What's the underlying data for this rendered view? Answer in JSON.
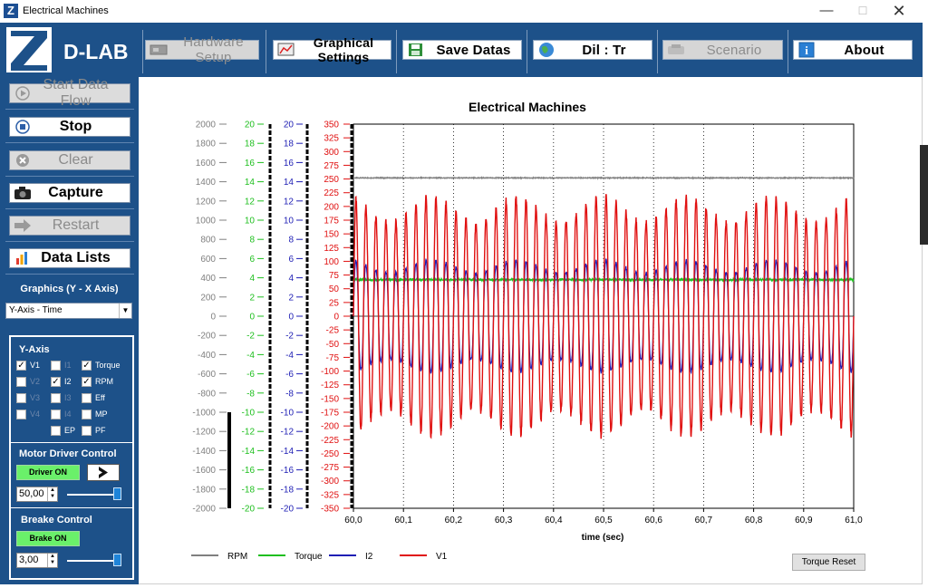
{
  "window": {
    "title": "Electrical Machines",
    "minimize": "—",
    "maximize": "☐",
    "close": "✕"
  },
  "logo": {
    "text": "D-LAB"
  },
  "toolbar": [
    {
      "label": "Hardware Setup",
      "icon": "hardware-icon",
      "disabled": true
    },
    {
      "label": "Graphical Settings",
      "icon": "graph-settings-icon",
      "disabled": false
    },
    {
      "label": "Save  Datas",
      "icon": "save-icon",
      "disabled": false
    },
    {
      "label": "Dil : Tr",
      "icon": "globe-icon",
      "disabled": false
    },
    {
      "label": "Scenario",
      "icon": "scenario-icon",
      "disabled": true
    },
    {
      "label": "About",
      "icon": "info-icon",
      "disabled": false
    }
  ],
  "left": {
    "start": "Start Data Flow",
    "stop": "Stop",
    "clear": "Clear",
    "capture": "Capture",
    "restart": "Restart",
    "datalists": "Data Lists",
    "graphics_label": "Graphics (Y - X Axis)",
    "axis_select": "Y-Axis - Time",
    "yaxis_title": "Y-Axis",
    "checkboxes": [
      {
        "label": "V1",
        "checked": true,
        "enabled": true
      },
      {
        "label": "I1",
        "checked": false,
        "enabled": false
      },
      {
        "label": "Torque",
        "checked": true,
        "enabled": true
      },
      {
        "label": "V2",
        "checked": false,
        "enabled": false
      },
      {
        "label": "I2",
        "checked": true,
        "enabled": true
      },
      {
        "label": "RPM",
        "checked": true,
        "enabled": true
      },
      {
        "label": "V3",
        "checked": false,
        "enabled": false
      },
      {
        "label": "I3",
        "checked": false,
        "enabled": false
      },
      {
        "label": "Eff",
        "checked": false,
        "enabled": true
      },
      {
        "label": "V4",
        "checked": false,
        "enabled": false
      },
      {
        "label": "I4",
        "checked": false,
        "enabled": false
      },
      {
        "label": "MP",
        "checked": false,
        "enabled": true
      },
      {
        "label": "EP",
        "checked": false,
        "enabled": true
      },
      {
        "label": "PF",
        "checked": false,
        "enabled": true
      }
    ],
    "motor_title": "Motor Driver Control",
    "driver_btn": "Driver ON",
    "driver_value": "50,00",
    "driver_level": 0.97,
    "brake_title": "Breake Control",
    "brake_btn": "Brake ON",
    "brake_value": "3,00",
    "brake_level": 0.97
  },
  "torque_reset": "Torque Reset",
  "colors": {
    "rpm": "#808080",
    "torque": "#1fbf1f",
    "i2": "#1e1eb4",
    "v1": "#e01010",
    "blue_panel": "#1d5189"
  },
  "chart_data": {
    "type": "line",
    "title": "Electrical Machines",
    "xlabel": "time (sec)",
    "xlim": [
      60.0,
      61.0
    ],
    "x_ticks": [
      "60,0",
      "60,1",
      "60,2",
      "60,3",
      "60,4",
      "60,5",
      "60,6",
      "60,7",
      "60,8",
      "60,9",
      "61,0"
    ],
    "axes": [
      {
        "name": "RPM",
        "color": "#808080",
        "ylim": [
          -2000,
          2000
        ],
        "ticks": [
          "2000",
          "1800",
          "1600",
          "1400",
          "1200",
          "1000",
          "800",
          "600",
          "400",
          "200",
          "0",
          "-200",
          "-400",
          "-600",
          "-800",
          "-1000",
          "-1200",
          "-1400",
          "-1600",
          "-1800",
          "-2000"
        ]
      },
      {
        "name": "Torque",
        "color": "#1fbf1f",
        "ylim": [
          -20,
          20
        ],
        "ticks": [
          "20",
          "18",
          "16",
          "14",
          "12",
          "10",
          "8",
          "6",
          "4",
          "2",
          "0",
          "-2",
          "-4",
          "-6",
          "-8",
          "-10",
          "-12",
          "-14",
          "-16",
          "-18",
          "-20"
        ]
      },
      {
        "name": "I2",
        "color": "#1e1eb4",
        "ylim": [
          -20,
          20
        ],
        "ticks": [
          "20",
          "18",
          "16",
          "14",
          "12",
          "10",
          "8",
          "6",
          "4",
          "2",
          "0",
          "-2",
          "-4",
          "-6",
          "-8",
          "-10",
          "-12",
          "-14",
          "-16",
          "-18",
          "-20"
        ]
      },
      {
        "name": "V1",
        "color": "#e01010",
        "ylim": [
          -350,
          350
        ],
        "ticks": [
          "350",
          "325",
          "300",
          "275",
          "250",
          "225",
          "200",
          "175",
          "150",
          "125",
          "100",
          "75",
          "50",
          "25",
          "0",
          "-25",
          "-50",
          "-75",
          "-100",
          "-125",
          "-150",
          "-175",
          "-200",
          "-225",
          "-250",
          "-275",
          "-300",
          "-325",
          "-350"
        ]
      }
    ],
    "legend": [
      "RPM",
      "Torque",
      "I2",
      "V1"
    ],
    "series": [
      {
        "name": "RPM",
        "axis": "RPM",
        "approx_value": 1440
      },
      {
        "name": "Torque",
        "axis": "Torque",
        "approx_value": 3.8
      },
      {
        "name": "I2",
        "axis": "I2",
        "amplitude": 5.5,
        "frequency_hz": 50
      },
      {
        "name": "V1",
        "axis": "V1",
        "amplitude": 195,
        "frequency_hz": 50
      }
    ],
    "grid": true,
    "legend_position": "bottom-left"
  }
}
